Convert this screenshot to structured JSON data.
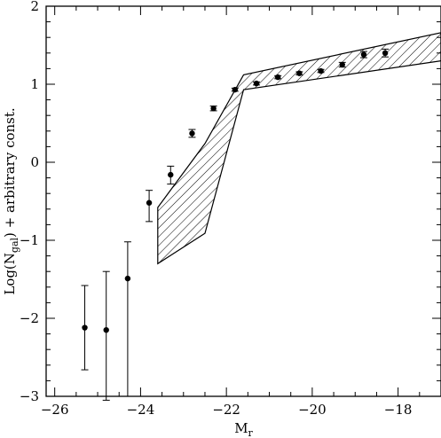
{
  "chart_data": {
    "type": "scatter",
    "title": "",
    "xlabel_main": "M",
    "xlabel_sub": "r",
    "ylabel_main": "Log(N",
    "ylabel_sub": "gal",
    "ylabel_tail": ") + arbitrary const.",
    "xlim": [
      -26.2,
      -17.0
    ],
    "ylim": [
      -3,
      2
    ],
    "x_ticks": [
      -26,
      -24,
      -22,
      -20,
      -18
    ],
    "x_tick_labels": [
      "−26",
      "−24",
      "−22",
      "−20",
      "−18"
    ],
    "y_ticks": [
      -3,
      -2,
      -1,
      0,
      1,
      2
    ],
    "y_tick_labels": [
      "−3",
      "−2",
      "−1",
      "0",
      "1",
      "2"
    ],
    "x_minor_step": 0.5,
    "y_minor_step": 0.2,
    "grid": false,
    "points": [
      {
        "x": -25.3,
        "y": -2.12,
        "err_lo": 0.54,
        "err_hi": 0.54
      },
      {
        "x": -24.8,
        "y": -2.15,
        "err_lo": 0.9,
        "err_hi": 0.75
      },
      {
        "x": -24.3,
        "y": -1.49,
        "err_lo": 1.51,
        "err_hi": 0.47
      },
      {
        "x": -23.8,
        "y": -0.52,
        "err_lo": 0.24,
        "err_hi": 0.16
      },
      {
        "x": -23.3,
        "y": -0.16,
        "err_lo": 0.12,
        "err_hi": 0.11
      },
      {
        "x": -22.8,
        "y": 0.37,
        "err_lo": 0.05,
        "err_hi": 0.05
      },
      {
        "x": -22.3,
        "y": 0.69,
        "err_lo": 0.03,
        "err_hi": 0.03
      },
      {
        "x": -21.8,
        "y": 0.93,
        "err_lo": 0.02,
        "err_hi": 0.02
      },
      {
        "x": -21.3,
        "y": 1.01,
        "err_lo": 0.02,
        "err_hi": 0.02
      },
      {
        "x": -20.8,
        "y": 1.09,
        "err_lo": 0.02,
        "err_hi": 0.02
      },
      {
        "x": -20.3,
        "y": 1.14,
        "err_lo": 0.02,
        "err_hi": 0.02
      },
      {
        "x": -19.8,
        "y": 1.17,
        "err_lo": 0.02,
        "err_hi": 0.02
      },
      {
        "x": -19.3,
        "y": 1.25,
        "err_lo": 0.03,
        "err_hi": 0.03
      },
      {
        "x": -18.8,
        "y": 1.38,
        "err_lo": 0.04,
        "err_hi": 0.04
      },
      {
        "x": -18.3,
        "y": 1.4,
        "err_lo": 0.05,
        "err_hi": 0.05
      }
    ],
    "band": {
      "upper": [
        [
          -23.6,
          -0.58
        ],
        [
          -22.5,
          0.24
        ],
        [
          -21.6,
          1.12
        ],
        [
          -17.0,
          1.66
        ]
      ],
      "lower": [
        [
          -23.6,
          -1.3
        ],
        [
          -22.5,
          -0.91
        ],
        [
          -21.6,
          0.93
        ],
        [
          -17.0,
          1.3
        ]
      ]
    }
  }
}
